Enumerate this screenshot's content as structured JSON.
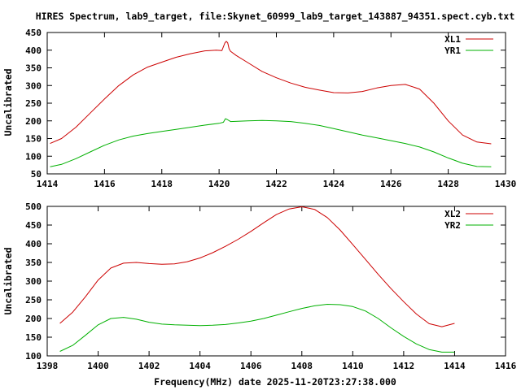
{
  "title": "HIRES Spectrum, lab9_target, file:Skynet_60999_lab9_target_143887_94351.spect.cyb.txt",
  "xlabel": "Frequency(MHz) date 2025-11-20T23:27:38.000",
  "chart_data": [
    {
      "type": "line",
      "ylabel": "Uncalibrated",
      "xlim": [
        1414,
        1430
      ],
      "ylim": [
        50,
        450
      ],
      "xticks": [
        "1414",
        "1416",
        "1418",
        "1420",
        "1422",
        "1424",
        "1426",
        "1428",
        "1430"
      ],
      "yticks": [
        "50",
        "100",
        "150",
        "200",
        "250",
        "300",
        "350",
        "400",
        "450"
      ],
      "series": [
        {
          "name": "XL1",
          "color": "#cc0000",
          "x": [
            1414.1,
            1414.5,
            1415.0,
            1415.5,
            1416.0,
            1416.5,
            1417.0,
            1417.5,
            1418.0,
            1418.5,
            1419.0,
            1419.5,
            1419.9,
            1420.1,
            1420.2,
            1420.25,
            1420.3,
            1420.35,
            1420.4,
            1420.6,
            1421.0,
            1421.5,
            1422.0,
            1422.5,
            1423.0,
            1423.5,
            1424.0,
            1424.5,
            1425.0,
            1425.5,
            1426.0,
            1426.5,
            1427.0,
            1427.5,
            1428.0,
            1428.5,
            1429.0,
            1429.5
          ],
          "values": [
            136,
            150,
            182,
            222,
            262,
            300,
            330,
            352,
            366,
            380,
            390,
            398,
            400,
            399,
            420,
            425,
            421,
            404,
            397,
            385,
            365,
            340,
            322,
            307,
            295,
            287,
            280,
            279,
            283,
            293,
            300,
            303,
            290,
            250,
            200,
            160,
            140,
            135
          ]
        },
        {
          "name": "YR1",
          "color": "#00b000",
          "x": [
            1414.1,
            1414.5,
            1415.0,
            1415.5,
            1416.0,
            1416.5,
            1417.0,
            1417.5,
            1418.0,
            1418.5,
            1419.0,
            1419.5,
            1420.0,
            1420.15,
            1420.22,
            1420.28,
            1420.4,
            1421.0,
            1421.5,
            1422.0,
            1422.5,
            1423.0,
            1423.5,
            1424.0,
            1424.5,
            1425.0,
            1425.5,
            1426.0,
            1426.5,
            1427.0,
            1427.5,
            1428.0,
            1428.5,
            1429.0,
            1429.5
          ],
          "values": [
            70,
            77,
            93,
            112,
            131,
            146,
            157,
            164,
            170,
            176,
            182,
            188,
            193,
            196,
            206,
            204,
            198,
            200,
            201,
            200,
            198,
            193,
            187,
            178,
            169,
            160,
            152,
            144,
            136,
            126,
            112,
            95,
            80,
            71,
            70
          ]
        }
      ]
    },
    {
      "type": "line",
      "ylabel": "Uncalibrated",
      "xlim": [
        1398,
        1416
      ],
      "ylim": [
        100,
        500
      ],
      "xticks": [
        "1398",
        "1400",
        "1402",
        "1404",
        "1406",
        "1408",
        "1410",
        "1412",
        "1414",
        "1416"
      ],
      "yticks": [
        "100",
        "150",
        "200",
        "250",
        "300",
        "350",
        "400",
        "450",
        "500"
      ],
      "series": [
        {
          "name": "XL2",
          "color": "#cc0000",
          "x": [
            1398.5,
            1399.0,
            1399.5,
            1400.0,
            1400.5,
            1401.0,
            1401.5,
            1402.0,
            1402.5,
            1403.0,
            1403.5,
            1404.0,
            1404.5,
            1405.0,
            1405.5,
            1406.0,
            1406.5,
            1407.0,
            1407.5,
            1408.0,
            1408.5,
            1409.0,
            1409.5,
            1410.0,
            1410.5,
            1411.0,
            1411.5,
            1412.0,
            1412.5,
            1413.0,
            1413.5,
            1414.0
          ],
          "values": [
            187,
            217,
            258,
            303,
            335,
            348,
            350,
            347,
            345,
            346,
            352,
            362,
            376,
            393,
            412,
            433,
            456,
            478,
            493,
            499,
            492,
            470,
            437,
            398,
            358,
            318,
            280,
            245,
            212,
            186,
            178,
            187
          ]
        },
        {
          "name": "YR2",
          "color": "#00b000",
          "x": [
            1398.5,
            1399.0,
            1399.5,
            1400.0,
            1400.5,
            1401.0,
            1401.5,
            1402.0,
            1402.5,
            1403.0,
            1403.5,
            1404.0,
            1404.5,
            1405.0,
            1405.5,
            1406.0,
            1406.5,
            1407.0,
            1407.5,
            1408.0,
            1408.5,
            1409.0,
            1409.5,
            1410.0,
            1410.5,
            1411.0,
            1411.5,
            1412.0,
            1412.5,
            1413.0,
            1413.5,
            1414.0
          ],
          "values": [
            112,
            128,
            155,
            183,
            200,
            203,
            198,
            190,
            185,
            183,
            182,
            181,
            182,
            184,
            188,
            193,
            200,
            209,
            218,
            227,
            234,
            238,
            237,
            232,
            220,
            200,
            175,
            152,
            132,
            117,
            110,
            110
          ]
        }
      ]
    }
  ]
}
